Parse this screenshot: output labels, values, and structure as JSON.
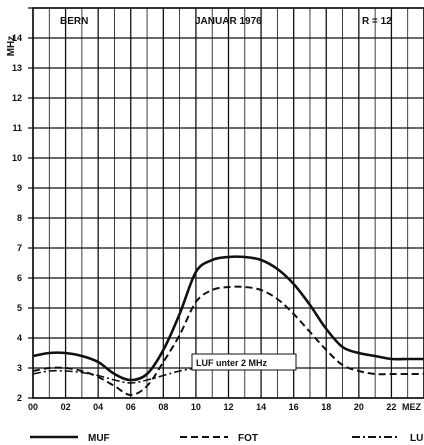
{
  "chart_data": {
    "type": "line",
    "header": {
      "location": "BERN",
      "period": "JANUAR 1976",
      "r_value": "R = 12"
    },
    "ylabel": "MHz",
    "xlabel": "",
    "x_ticks": [
      "00",
      "02",
      "04",
      "06",
      "08",
      "10",
      "12",
      "14",
      "16",
      "18",
      "20",
      "22",
      "MEZ"
    ],
    "y_ticks": [
      "2",
      "3",
      "4",
      "5",
      "6",
      "7",
      "8",
      "9",
      "10",
      "11",
      "12",
      "13",
      "14"
    ],
    "xlim": [
      0,
      24
    ],
    "ylim": [
      2,
      15
    ],
    "grid": true,
    "annotation": {
      "text": "LUF unter 2 MHz",
      "x": 10.5,
      "y": 3
    },
    "series": [
      {
        "name": "MUF",
        "style": "solid",
        "x": [
          0,
          1,
          2,
          3,
          4,
          5,
          6,
          7,
          8,
          9,
          10,
          11,
          12,
          13,
          14,
          15,
          16,
          17,
          18,
          19,
          20,
          21,
          22,
          23,
          24
        ],
        "y": [
          3.4,
          3.5,
          3.5,
          3.4,
          3.2,
          2.8,
          2.6,
          2.8,
          3.6,
          4.8,
          6.2,
          6.6,
          6.7,
          6.7,
          6.6,
          6.3,
          5.8,
          5.1,
          4.3,
          3.7,
          3.5,
          3.4,
          3.3,
          3.3,
          3.3
        ]
      },
      {
        "name": "FOT",
        "style": "dashed",
        "x": [
          0,
          1,
          2,
          3,
          4,
          5,
          6,
          7,
          8,
          9,
          10,
          11,
          12,
          13,
          14,
          15,
          16,
          17,
          18,
          19,
          20,
          21,
          22,
          23,
          24
        ],
        "y": [
          2.9,
          3.0,
          3.0,
          2.9,
          2.7,
          2.4,
          2.1,
          2.4,
          3.2,
          4.1,
          5.2,
          5.6,
          5.7,
          5.7,
          5.6,
          5.3,
          4.8,
          4.2,
          3.6,
          3.1,
          2.9,
          2.8,
          2.8,
          2.8,
          2.8
        ]
      },
      {
        "name": "LUF",
        "style": "dash-dot",
        "x": [
          0,
          1,
          2,
          3,
          4,
          5,
          6,
          7,
          8,
          9,
          10
        ],
        "y": [
          2.8,
          2.9,
          2.9,
          2.85,
          2.75,
          2.6,
          2.5,
          2.6,
          2.75,
          2.9,
          3.0
        ]
      }
    ],
    "legend": [
      {
        "label": "MUF",
        "style": "solid"
      },
      {
        "label": "FOT",
        "style": "dashed"
      },
      {
        "label": "LUF",
        "style": "dash-dot"
      }
    ],
    "legend_position": "bottom"
  }
}
